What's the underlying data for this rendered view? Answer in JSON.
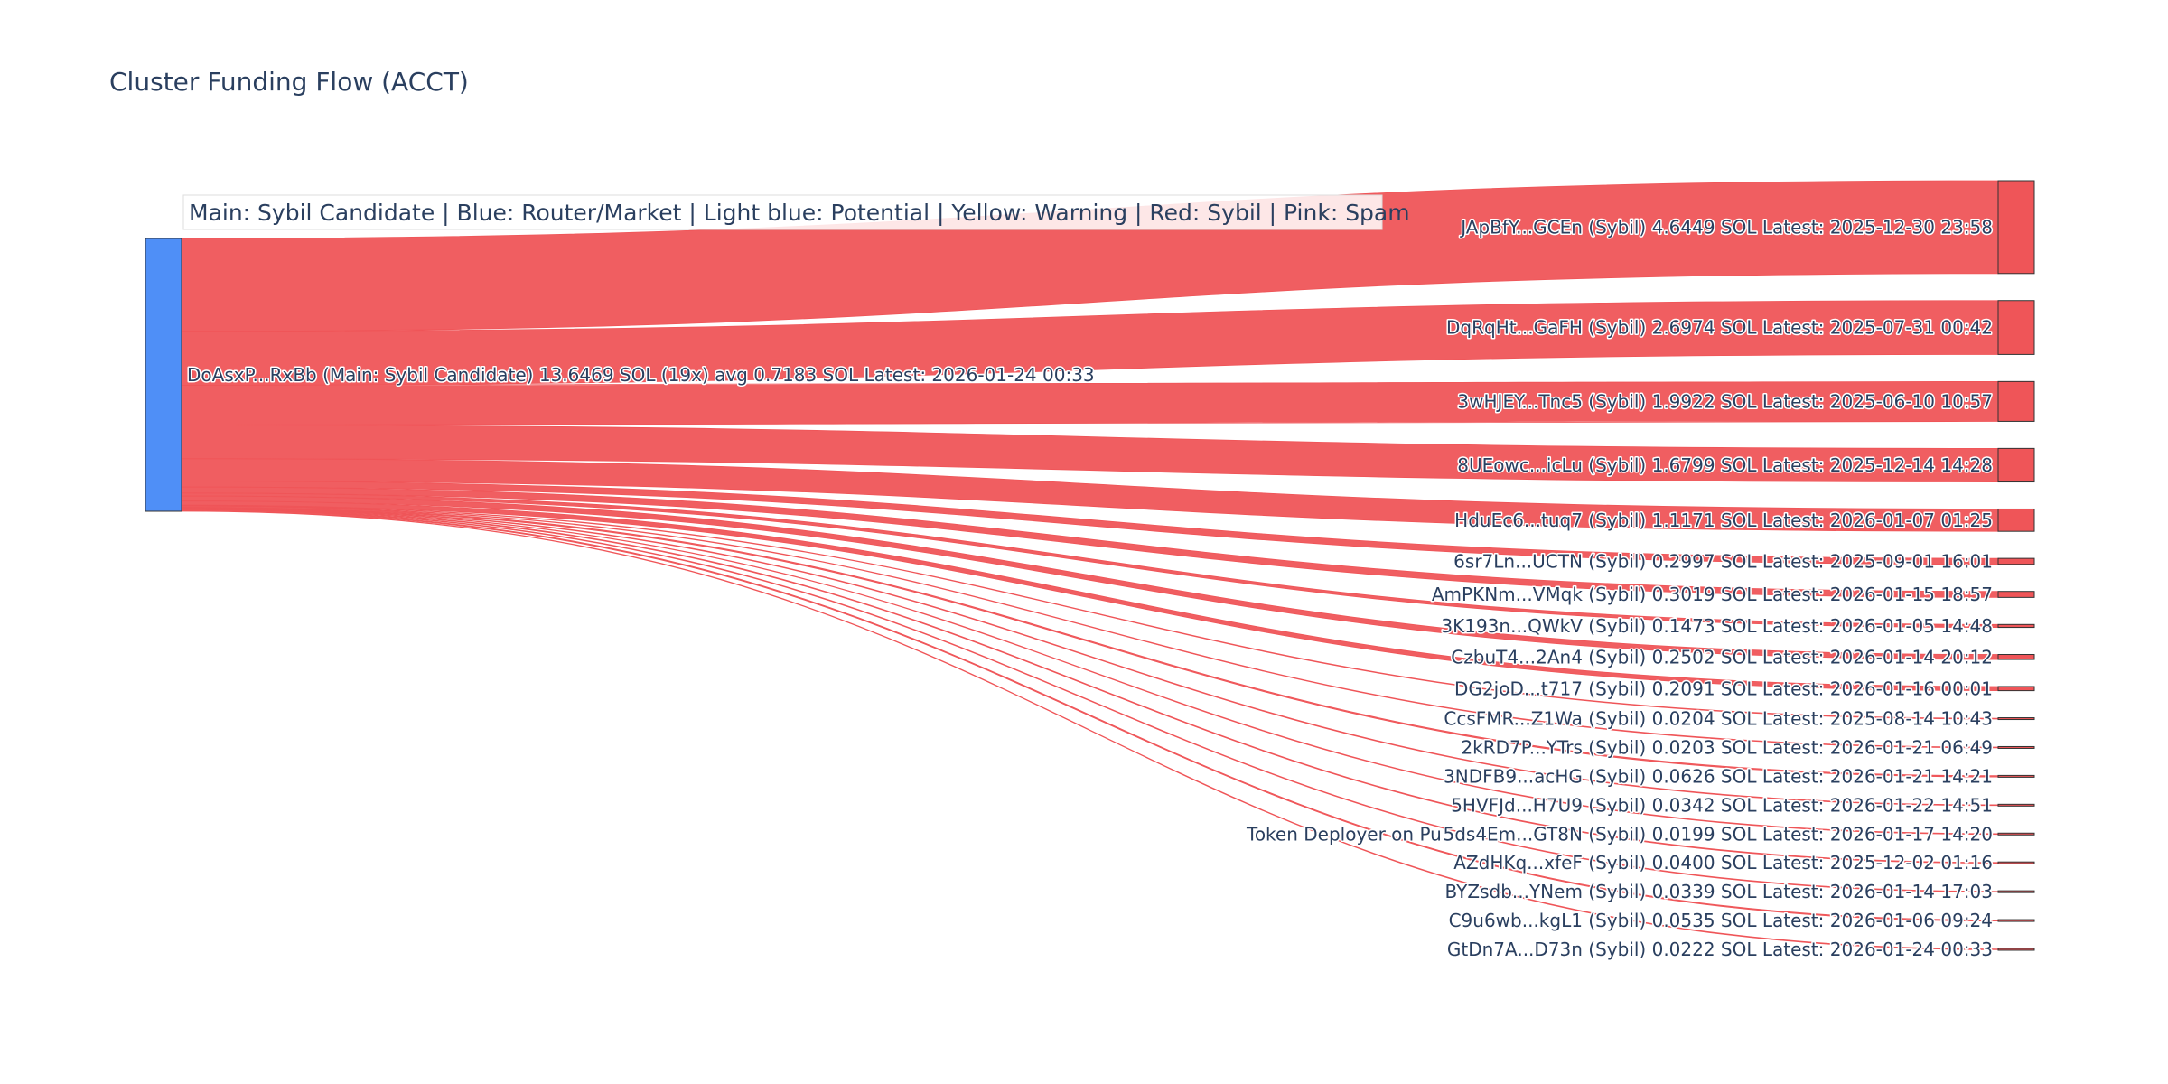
{
  "chart_data": {
    "type": "sankey",
    "title": "Cluster Funding Flow (ACCT)",
    "legend_text": "Main: Sybil Candidate  |  Blue: Router/Market | Light blue: Potential | Yellow: Warning | Red: Sybil | Pink: Spam",
    "colors": {
      "source_node": "#4f8ff7",
      "sybil": "#ef5558",
      "link": "#ef5558",
      "node_border": "#333333"
    },
    "source": {
      "label": "DoAsxP...RxBb (Main: Sybil Candidate) 13.6469 SOL (19x) avg 0.7183 SOL Latest: 2026-01-24 00:33",
      "total": 13.6469
    },
    "extra_label": "Token Deployer on Pu",
    "targets": [
      {
        "label": "JApBfY...GCEn (Sybil) 4.6449 SOL Latest: 2025-12-30 23:58",
        "value": 4.6449
      },
      {
        "label": "DqRqHt...GaFH (Sybil) 2.6974 SOL Latest: 2025-07-31 00:42",
        "value": 2.6974
      },
      {
        "label": "3wHJEY...Tnc5 (Sybil) 1.9922 SOL Latest: 2025-06-10 10:57",
        "value": 1.9922
      },
      {
        "label": "8UEowc...icLu (Sybil) 1.6799 SOL Latest: 2025-12-14 14:28",
        "value": 1.6799
      },
      {
        "label": "HduEc6...tuq7 (Sybil) 1.1171 SOL Latest: 2026-01-07 01:25",
        "value": 1.1171
      },
      {
        "label": "6sr7Ln...UCTN (Sybil) 0.2997 SOL Latest: 2025-09-01 16:01",
        "value": 0.2997
      },
      {
        "label": "AmPKNm...VMqk (Sybil) 0.3019 SOL Latest: 2026-01-15 18:57",
        "value": 0.3019
      },
      {
        "label": "3K193n...QWkV (Sybil) 0.1473 SOL Latest: 2026-01-05 14:48",
        "value": 0.1473
      },
      {
        "label": "CzbuT4...2An4 (Sybil) 0.2502 SOL Latest: 2026-01-14 20:12",
        "value": 0.2502
      },
      {
        "label": "DG2joD...t717 (Sybil) 0.2091 SOL Latest: 2026-01-16 00:01",
        "value": 0.2091
      },
      {
        "label": "CcsFMR...Z1Wa (Sybil) 0.0204 SOL Latest: 2025-08-14 10:43",
        "value": 0.0204
      },
      {
        "label": "2kRD7P...YTrs (Sybil) 0.0203 SOL Latest: 2026-01-21 06:49",
        "value": 0.0203
      },
      {
        "label": "3NDFB9...acHG (Sybil) 0.0626 SOL Latest: 2026-01-21 14:21",
        "value": 0.0626
      },
      {
        "label": "5HVFJd...H7U9 (Sybil) 0.0342 SOL Latest: 2026-01-22 14:51",
        "value": 0.0342
      },
      {
        "label": "5ds4Em...GT8N (Sybil) 0.0199 SOL Latest: 2026-01-17 14:20",
        "value": 0.0199
      },
      {
        "label": "AZdHKq...xfeF (Sybil) 0.0400 SOL Latest: 2025-12-02 01:16",
        "value": 0.04
      },
      {
        "label": "BYZsdb...YNem (Sybil) 0.0339 SOL Latest: 2026-01-14 17:03",
        "value": 0.0339
      },
      {
        "label": "C9u6wb...kgL1 (Sybil) 0.0535 SOL Latest: 2026-01-06 09:24",
        "value": 0.0535
      },
      {
        "label": "GtDn7A...D73n (Sybil) 0.0222 SOL Latest: 2026-01-24 00:33",
        "value": 0.0222
      }
    ]
  }
}
